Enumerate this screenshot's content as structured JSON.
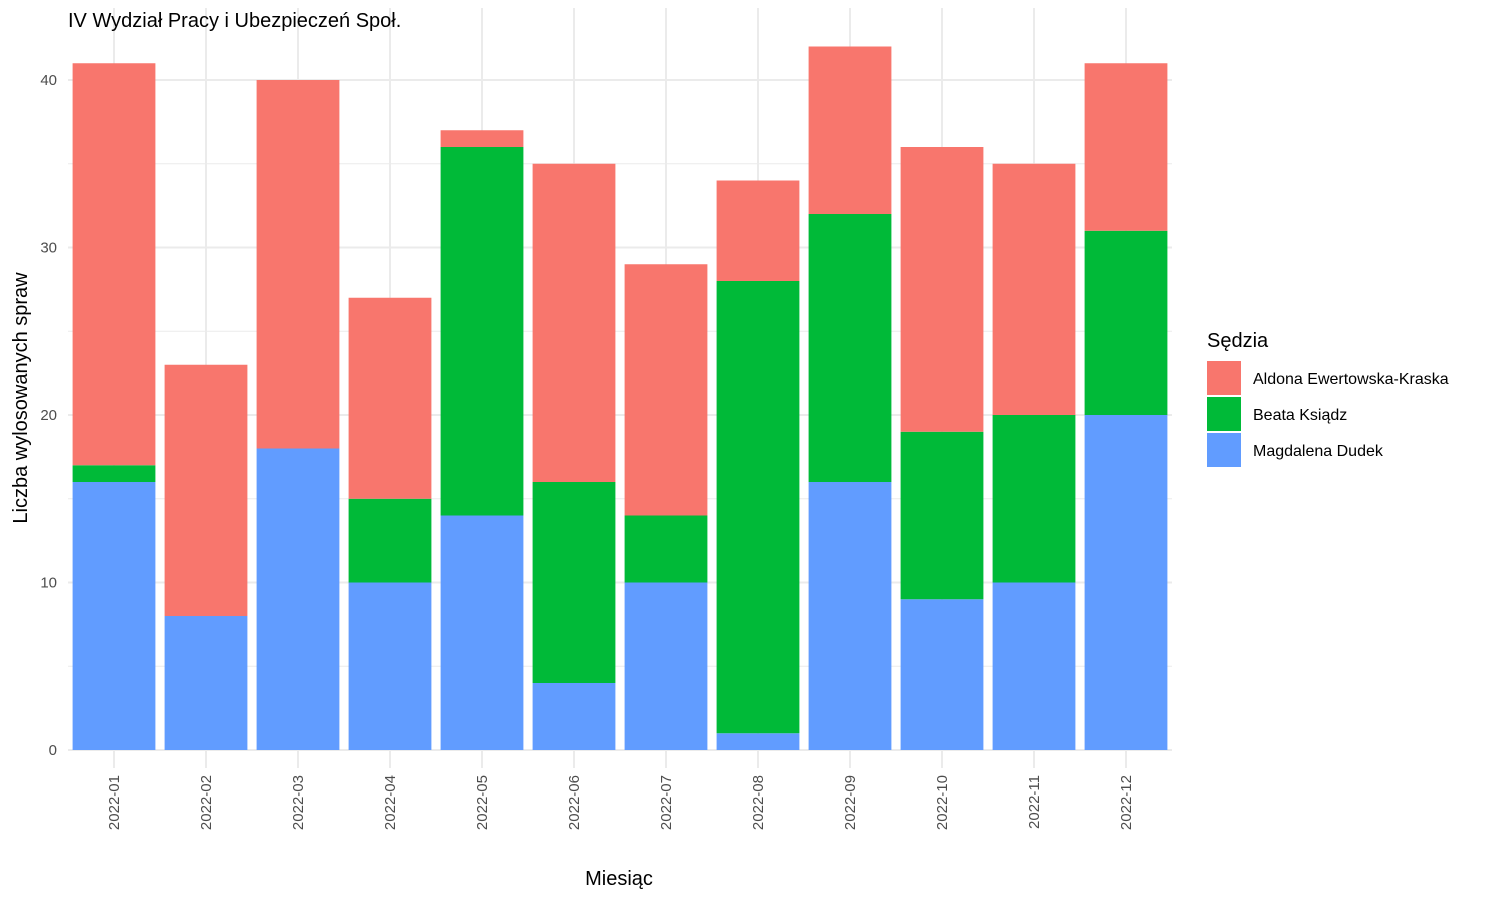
{
  "chart_data": {
    "type": "bar",
    "stacked": true,
    "title": "IV Wydział Pracy i Ubezpieczeń Społ.",
    "xlabel": "Miesiąc",
    "ylabel": "Liczba wylosowanych spraw",
    "ylim": [
      0,
      43
    ],
    "yticks": [
      0,
      10,
      20,
      30,
      40
    ],
    "grid": true,
    "legend": {
      "title": "Sędzia",
      "position": "right"
    },
    "categories": [
      "2022-01",
      "2022-02",
      "2022-03",
      "2022-04",
      "2022-05",
      "2022-06",
      "2022-07",
      "2022-08",
      "2022-09",
      "2022-10",
      "2022-11",
      "2022-12"
    ],
    "series": [
      {
        "name": "Magdalena Dudek",
        "color": "#619CFF",
        "values": [
          16,
          8,
          18,
          10,
          14,
          4,
          10,
          1,
          16,
          9,
          10,
          20
        ]
      },
      {
        "name": "Beata Ksiądz",
        "color": "#00BA38",
        "values": [
          1,
          0,
          0,
          5,
          22,
          12,
          4,
          27,
          16,
          10,
          10,
          11
        ]
      },
      {
        "name": "Aldona Ewertowska-Kraska",
        "color": "#F8766D",
        "values": [
          24,
          15,
          22,
          12,
          1,
          19,
          15,
          6,
          10,
          17,
          15,
          10
        ]
      }
    ],
    "legend_order": [
      "Aldona Ewertowska-Kraska",
      "Beata Ksiądz",
      "Magdalena Dudek"
    ]
  }
}
